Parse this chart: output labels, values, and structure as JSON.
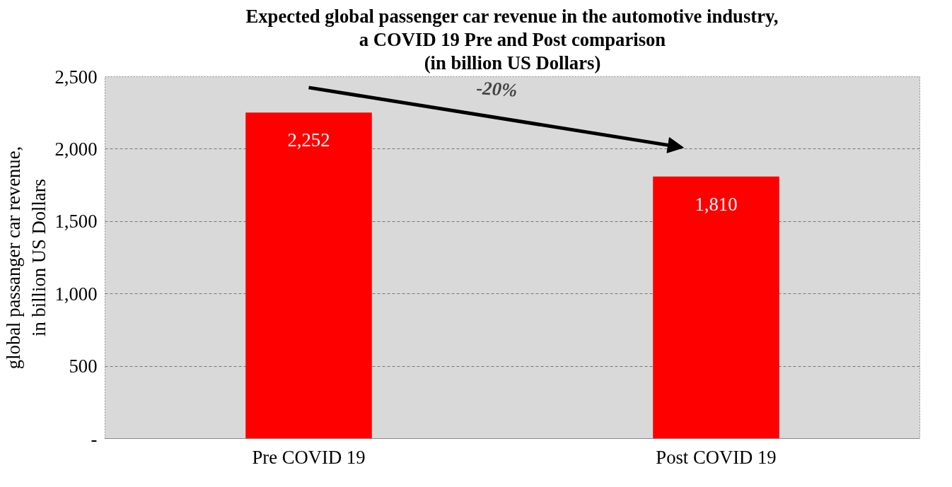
{
  "chart_data": {
    "type": "bar",
    "title": "Expected global passenger car revenue in the automotive industry,\na COVID 19 Pre and Post comparison\n(in billion US Dollars)",
    "ylabel": "global passanger car revenue,\nin billion US Dollars",
    "categories": [
      "Pre COVID 19",
      "Post COVID 19"
    ],
    "values": [
      2252,
      1810
    ],
    "color": "#ff0000",
    "value_labels": [
      "2,252",
      "1,810"
    ],
    "ylim": [
      0,
      2500
    ],
    "yticks": [
      {
        "value": 0,
        "label": "-"
      },
      500,
      {
        "value": 1000,
        "label": "1,000"
      },
      {
        "value": 1500,
        "label": "1,500"
      },
      {
        "value": 2000,
        "label": "2,000"
      },
      {
        "value": 2500,
        "label": "2,500"
      }
    ],
    "grid": "y",
    "annotations": [
      "-20%"
    ]
  }
}
